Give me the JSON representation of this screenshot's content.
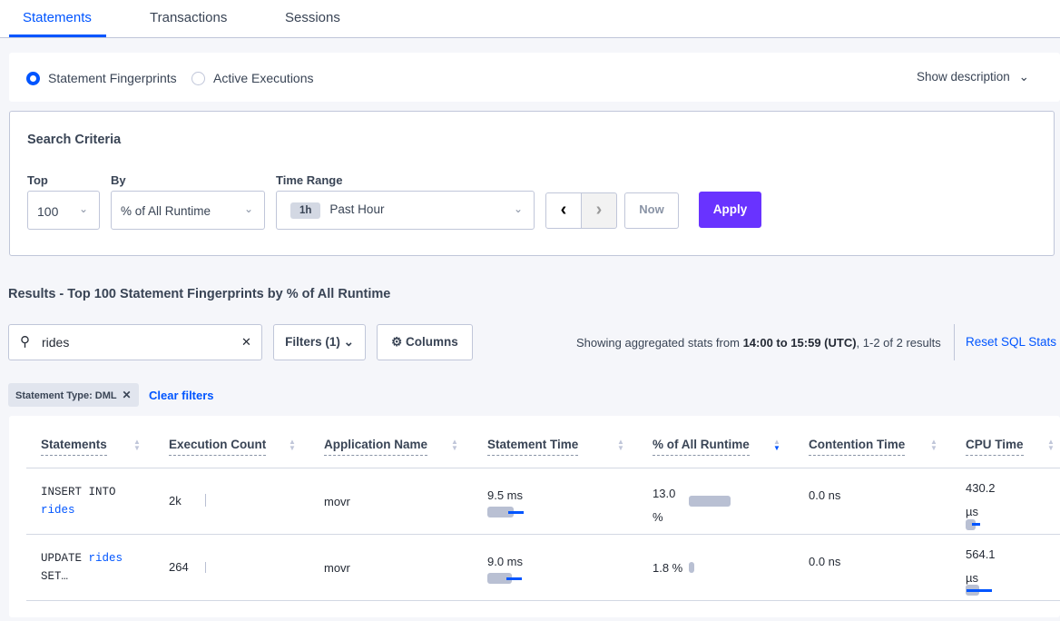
{
  "tabs": [
    {
      "label": "Statements",
      "active": true
    },
    {
      "label": "Transactions"
    },
    {
      "label": "Sessions"
    }
  ],
  "view_toggle": {
    "options": [
      "Statement Fingerprints",
      "Active Executions"
    ],
    "selected": "Statement Fingerprints",
    "show_description": "Show description"
  },
  "search_criteria": {
    "title": "Search Criteria",
    "top_label": "Top",
    "top_value": "100",
    "by_label": "By",
    "by_value": "% of All Runtime",
    "time_range_label": "Time Range",
    "time_badge": "1h",
    "time_value": "Past Hour",
    "now_label": "Now",
    "apply_label": "Apply"
  },
  "results": {
    "title": "Results - Top 100 Statement Fingerprints by % of All Runtime",
    "search_value": "rides",
    "filters_label": "Filters (1)",
    "columns_label": "Columns",
    "stats_prefix": "Showing aggregated stats from ",
    "stats_range": "14:00 to 15:59 (UTC)",
    "stats_suffix": ", 1-2 of 2 results",
    "reset_label": "Reset SQL Stats",
    "chip": "Statement Type: DML",
    "clear_filters": "Clear filters"
  },
  "table": {
    "columns": [
      "Statements",
      "Execution Count",
      "Application Name",
      "Statement Time",
      "% of All Runtime",
      "Contention Time",
      "CPU Time"
    ],
    "sorted_column": "% of All Runtime",
    "sort_direction": "descending",
    "rows": [
      {
        "stmt_a": "INSERT INTO",
        "stmt_b": "rides",
        "exec_count": "2k",
        "app": "movr",
        "stmt_time": "9.5 ms",
        "runtime_a": "13.0",
        "runtime_b": "%",
        "runtime_pct": 13.0,
        "contention": "0.0 ns",
        "cpu_a": "430.2",
        "cpu_b": "µs"
      },
      {
        "stmt_a": "UPDATE",
        "stmt_b": "rides",
        "stmt_c": "SET…",
        "exec_count": "264",
        "app": "movr",
        "stmt_time": "9.0 ms",
        "runtime_a": "1.8 %",
        "runtime_pct": 1.8,
        "contention": "0.0 ns",
        "cpu_a": "564.1",
        "cpu_b": "µs"
      }
    ]
  },
  "colors": {
    "accent": "#0055ff",
    "apply": "#6933ff",
    "bar": "#b9c0d3"
  }
}
